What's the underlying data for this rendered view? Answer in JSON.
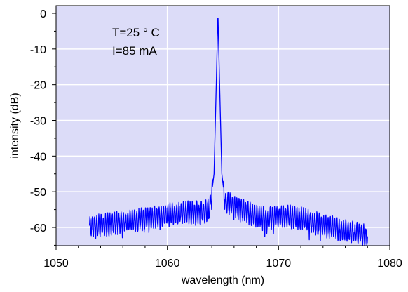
{
  "chart_data": {
    "type": "line",
    "title": "",
    "xlabel": "wavelength (nm)",
    "ylabel": "intensity (dB)",
    "xlim": [
      1050,
      1080
    ],
    "ylim": [
      -65,
      2
    ],
    "x_ticks": [
      1050,
      1060,
      1070,
      1080
    ],
    "y_ticks": [
      0,
      -10,
      -20,
      -30,
      -40,
      -50,
      -60
    ],
    "grid": true,
    "background": "#dcdcf8",
    "grid_color": "#ffffff",
    "line_color": "#0000ff",
    "annotations": [
      "T=25 ° C",
      "I=85 mA"
    ],
    "series": [
      {
        "x": [
          1053.0,
          1054.0,
          1055.0,
          1056.0,
          1057.0,
          1058.0,
          1059.0,
          1060.0,
          1061.0,
          1062.0,
          1063.0,
          1063.8,
          1064.2,
          1064.4,
          1064.55,
          1064.7,
          1064.9,
          1065.2,
          1065.6,
          1066.0,
          1066.5,
          1067.0,
          1068.0,
          1069.0,
          1070.0,
          1071.0,
          1072.0,
          1073.0,
          1074.0,
          1075.0,
          1076.0,
          1077.0,
          1078.0
        ],
        "y": [
          -59.5,
          -59.5,
          -59.0,
          -58.5,
          -58.0,
          -57.5,
          -57.0,
          -56.5,
          -56.0,
          -55.8,
          -55.8,
          -55.0,
          -45.0,
          -20.0,
          0.0,
          -20.0,
          -45.0,
          -53.0,
          -53.5,
          -54.0,
          -54.5,
          -55.5,
          -57.0,
          -57.5,
          -57.0,
          -57.0,
          -57.5,
          -58.5,
          -59.5,
          -60.0,
          -61.0,
          -61.5,
          -62.5
        ],
        "ripple_amplitude_db": 3.5,
        "ripple_period_nm": 0.2
      }
    ]
  }
}
